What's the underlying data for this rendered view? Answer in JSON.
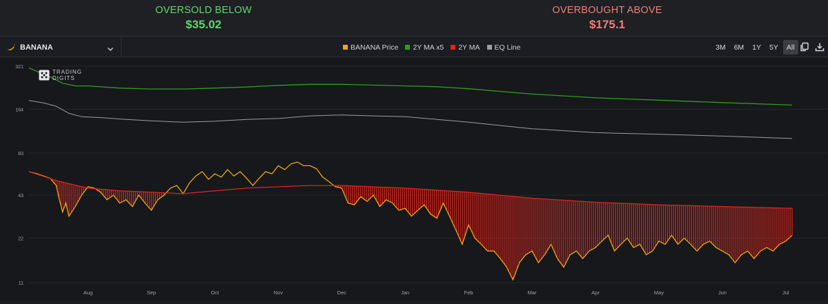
{
  "stats": {
    "oversold_label": "OVERSOLD BELOW",
    "oversold_value": "$35.02",
    "overbought_label": "OVERBOUGHT ABOVE",
    "overbought_value": "$175.1"
  },
  "toolbar": {
    "ticker": "BANANA",
    "legend": [
      {
        "label": "BANANA Price",
        "color": "#f2a516"
      },
      {
        "label": "2Y MA x5",
        "color": "#2e9e1c"
      },
      {
        "label": "2Y MA",
        "color": "#e0251b"
      },
      {
        "label": "EQ Line",
        "color": "#9a9ea5"
      }
    ],
    "ranges": [
      "3M",
      "6M",
      "1Y",
      "5Y",
      "All"
    ],
    "active_range": "All",
    "copy_icon": "copy-icon",
    "download_icon": "download-icon"
  },
  "watermark": {
    "line1": "TRADING",
    "line2": "DIGITS"
  },
  "chart_data": {
    "type": "line",
    "scale": "log",
    "ylim": [
      11,
      321
    ],
    "yticks": [
      "321",
      "164",
      "83",
      "43",
      "22",
      "11"
    ],
    "ytick_values": [
      321,
      164,
      83,
      43,
      22,
      11
    ],
    "xticks": [
      "Aug",
      "Sep",
      "Oct",
      "Nov",
      "Dec",
      "Jan",
      "Feb",
      "Mar",
      "Apr",
      "May",
      "Jun",
      "Jul"
    ],
    "xtick_positions": [
      1,
      2,
      3,
      4,
      5,
      6,
      7,
      8,
      9,
      10,
      11,
      12
    ],
    "xlim": [
      0.07,
      12.1
    ],
    "grid": true,
    "series": [
      {
        "name": "2Y MA x5",
        "color": "#2e9e1c",
        "x": [
          0.07,
          0.4,
          0.6,
          0.8,
          1.0,
          1.5,
          2.0,
          2.5,
          3.0,
          3.5,
          4.0,
          4.5,
          5.0,
          5.5,
          6.0,
          6.5,
          7.0,
          8.0,
          9.0,
          10.0,
          11.0,
          12.1
        ],
        "y": [
          312,
          272,
          246,
          236,
          236,
          228,
          225,
          225,
          228,
          232,
          238,
          242,
          242,
          239,
          236,
          233,
          226,
          208,
          196,
          189,
          182,
          175.1
        ]
      },
      {
        "name": "EQ Line",
        "color": "#9a9ea5",
        "x": [
          0.07,
          0.3,
          0.5,
          0.7,
          0.9,
          1.2,
          1.6,
          2.0,
          2.5,
          3.0,
          3.5,
          4.0,
          4.5,
          5.0,
          5.5,
          6.0,
          6.5,
          7.0,
          8.0,
          9.0,
          10.0,
          11.0,
          12.1
        ],
        "y": [
          188,
          181,
          172,
          154,
          146,
          144,
          140,
          137,
          134,
          136,
          140,
          142,
          148,
          150,
          148,
          146,
          140,
          134,
          121,
          114,
          111,
          108,
          104
        ]
      },
      {
        "name": "2Y MA",
        "color": "#e0251b",
        "x": [
          0.07,
          0.5,
          1.0,
          1.5,
          2.0,
          2.5,
          3.0,
          3.5,
          4.0,
          4.5,
          5.0,
          6.0,
          7.0,
          8.0,
          9.0,
          10.0,
          11.0,
          12.1
        ],
        "y": [
          62,
          54,
          48,
          46,
          45,
          44,
          46,
          48,
          49,
          50,
          50,
          48,
          45,
          41,
          38.5,
          37,
          36,
          35.02
        ]
      },
      {
        "name": "BANANA Price",
        "color": "#f2a516",
        "x": [
          0.07,
          0.2,
          0.3,
          0.4,
          0.5,
          0.55,
          0.6,
          0.65,
          0.7,
          0.8,
          0.9,
          1.0,
          1.1,
          1.2,
          1.3,
          1.4,
          1.5,
          1.6,
          1.7,
          1.8,
          1.9,
          2.0,
          2.1,
          2.2,
          2.3,
          2.4,
          2.5,
          2.6,
          2.7,
          2.8,
          2.9,
          3.0,
          3.1,
          3.2,
          3.3,
          3.4,
          3.5,
          3.6,
          3.7,
          3.8,
          3.9,
          4.0,
          4.1,
          4.2,
          4.3,
          4.4,
          4.5,
          4.6,
          4.7,
          4.8,
          4.9,
          5.0,
          5.1,
          5.2,
          5.3,
          5.4,
          5.5,
          5.6,
          5.7,
          5.8,
          5.9,
          6.0,
          6.1,
          6.2,
          6.3,
          6.4,
          6.5,
          6.6,
          6.7,
          6.8,
          6.9,
          7.0,
          7.1,
          7.2,
          7.3,
          7.4,
          7.5,
          7.6,
          7.7,
          7.8,
          7.9,
          8.0,
          8.1,
          8.2,
          8.3,
          8.4,
          8.5,
          8.6,
          8.7,
          8.8,
          8.9,
          9.0,
          9.1,
          9.2,
          9.3,
          9.4,
          9.5,
          9.6,
          9.7,
          9.8,
          9.9,
          10.0,
          10.1,
          10.2,
          10.3,
          10.4,
          10.5,
          10.6,
          10.7,
          10.8,
          10.9,
          11.0,
          11.1,
          11.2,
          11.3,
          11.4,
          11.5,
          11.6,
          11.7,
          11.8,
          11.9,
          12.0,
          12.1
        ],
        "y": [
          62,
          60,
          58,
          56,
          50,
          40,
          33,
          38,
          31,
          36,
          43,
          49,
          48,
          45,
          40,
          43,
          38,
          40,
          36,
          43,
          38,
          34,
          40,
          43,
          48,
          50,
          44,
          52,
          58,
          62,
          55,
          60,
          57,
          64,
          58,
          62,
          56,
          50,
          56,
          62,
          60,
          68,
          64,
          70,
          72,
          68,
          68,
          65,
          57,
          53,
          49,
          48,
          38,
          37,
          42,
          39,
          43,
          36,
          40,
          38,
          34,
          35,
          31,
          34,
          37,
          32,
          30,
          38,
          31,
          25,
          20,
          27,
          22,
          20,
          18,
          18,
          16,
          14,
          11.5,
          15,
          17,
          18,
          15,
          17,
          20,
          16,
          14,
          17,
          18,
          16,
          18,
          19,
          21,
          23,
          18,
          20,
          22,
          19,
          20,
          17,
          18,
          21,
          20,
          23,
          20,
          22,
          20,
          18,
          20,
          21,
          19,
          18,
          17,
          15,
          17,
          18,
          16,
          18,
          19,
          18,
          20,
          21,
          23
        ]
      }
    ],
    "fill_between": {
      "upper": "2Y MA",
      "lower": "BANANA Price",
      "color": "#e0251b"
    }
  }
}
